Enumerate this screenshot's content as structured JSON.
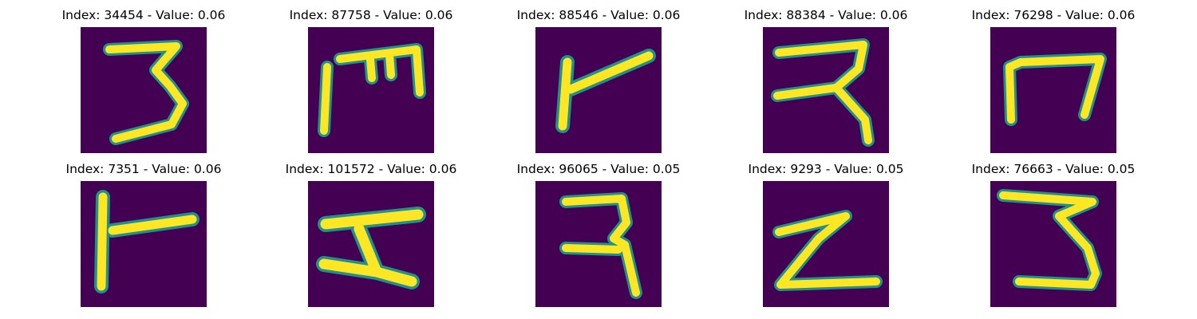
{
  "figure": {
    "panels": [
      {
        "title": "Index: 34454 - Value: 0.06",
        "glyph": "digit-3-like"
      },
      {
        "title": "Index: 87758 - Value: 0.06",
        "glyph": "m-like"
      },
      {
        "title": "Index: 88546 - Value: 0.06",
        "glyph": "r-like"
      },
      {
        "title": "Index: 88384 - Value: 0.06",
        "glyph": "digit-3-like"
      },
      {
        "title": "Index: 76298 - Value: 0.06",
        "glyph": "n-like"
      },
      {
        "title": "Index: 7351 - Value: 0.06",
        "glyph": "r-like"
      },
      {
        "title": "Index: 101572 - Value: 0.06",
        "glyph": "z-like"
      },
      {
        "title": "Index: 96065 - Value: 0.05",
        "glyph": "digit-3-like"
      },
      {
        "title": "Index: 9293 - Value: 0.05",
        "glyph": "z-like"
      },
      {
        "title": "Index: 76663 - Value: 0.05",
        "glyph": "digit-3-like"
      }
    ]
  },
  "colors": {
    "background": "#440154",
    "stroke_outer": "#21918c",
    "stroke_inner": "#fde725"
  }
}
